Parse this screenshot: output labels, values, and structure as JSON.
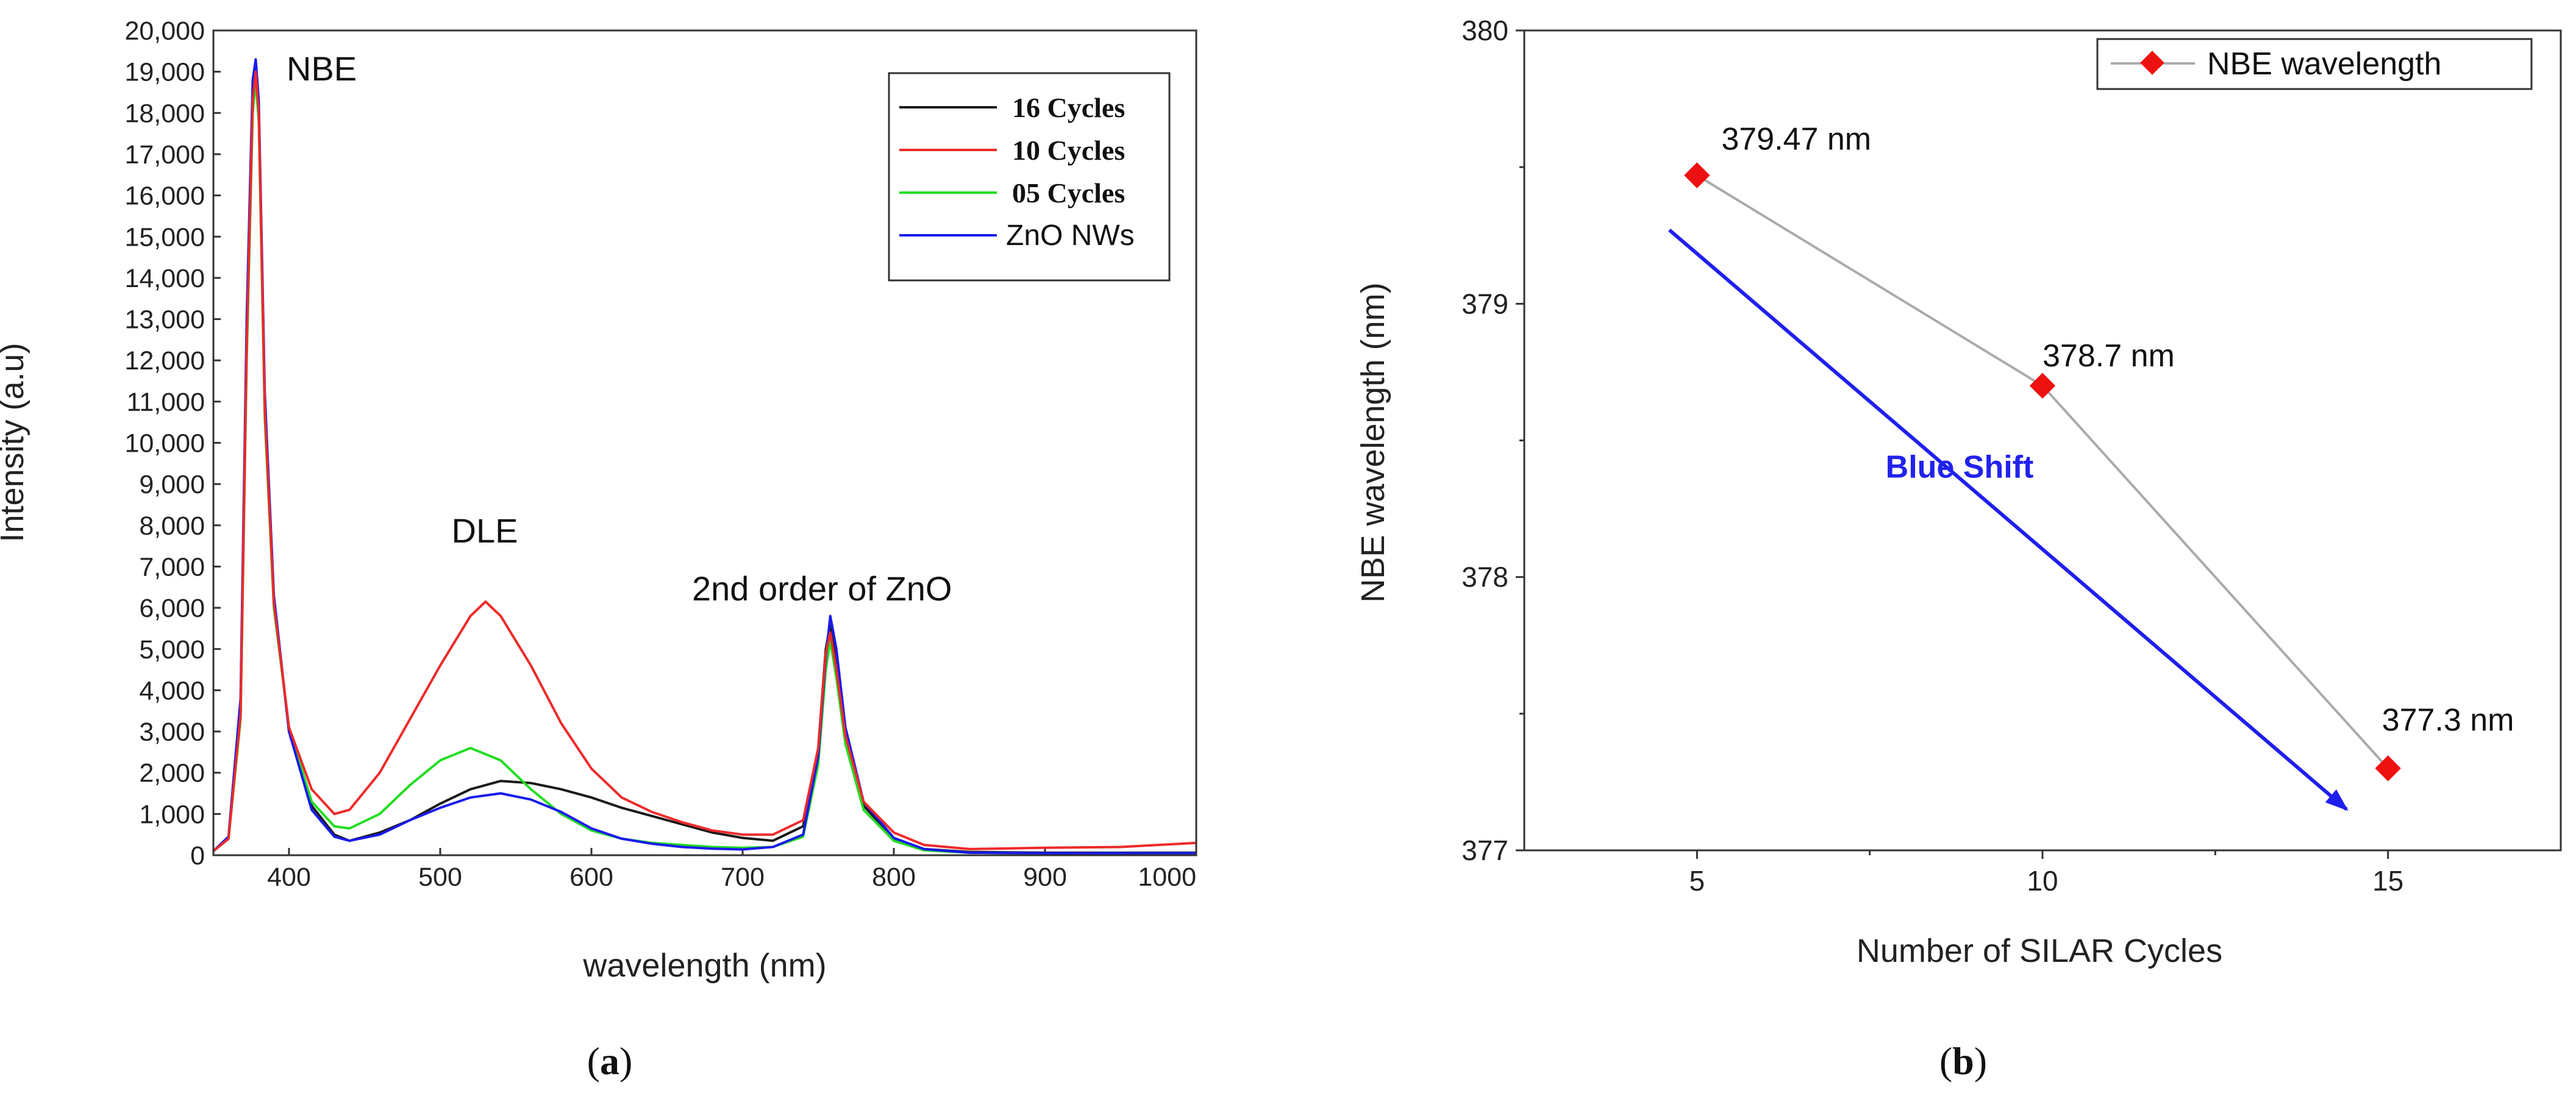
{
  "colors": {
    "black": "#1a1a1a",
    "red": "#ee2a2a",
    "green": "#22dd22",
    "blue": "#1a1aee",
    "grey": "#aaaaaa",
    "marker": "#ee1111",
    "arrow": "#1f1fee",
    "annot_blue": "#2222ee"
  },
  "chart_data": [
    {
      "type": "line",
      "panel_label": "(a)",
      "panel_letter": "a",
      "xlabel": "wavelength (nm)",
      "ylabel": "Intensity (a.u)",
      "xlim": [
        350,
        1000
      ],
      "ylim": [
        0,
        20000
      ],
      "xticks": [
        400,
        500,
        600,
        700,
        800,
        900,
        1000
      ],
      "xtick_labels": [
        "400",
        "500",
        "600",
        "700",
        "800",
        "900",
        "1000"
      ],
      "yticks": [
        0,
        1000,
        2000,
        3000,
        4000,
        5000,
        6000,
        7000,
        8000,
        9000,
        10000,
        11000,
        12000,
        13000,
        14000,
        15000,
        16000,
        17000,
        18000,
        19000,
        20000
      ],
      "ytick_labels": [
        "0",
        "1,000",
        "2,000",
        "3,000",
        "4,000",
        "5,000",
        "6,000",
        "7,000",
        "8,000",
        "9,000",
        "10,000",
        "11,000",
        "12,000",
        "13,000",
        "14,000",
        "15,000",
        "16,000",
        "17,000",
        "18,000",
        "19,000",
        "20,000"
      ],
      "grid": false,
      "legend_position": "top-right",
      "annotations": [
        {
          "text": "NBE",
          "x": 382,
          "y": 19000
        },
        {
          "text": "DLE",
          "x": 530,
          "y": 7600
        },
        {
          "text": "2nd order of ZnO",
          "x": 680,
          "y": 7000
        }
      ],
      "series": [
        {
          "name": "16 Cycles",
          "color_key": "black",
          "x": [
            350,
            360,
            368,
            372,
            376,
            378,
            380,
            384,
            390,
            400,
            415,
            430,
            440,
            460,
            480,
            500,
            520,
            540,
            560,
            580,
            600,
            620,
            640,
            660,
            680,
            700,
            720,
            740,
            750,
            755,
            758,
            762,
            768,
            780,
            800,
            820,
            850,
            900,
            950,
            1000
          ],
          "y": [
            100,
            400,
            3500,
            12500,
            18500,
            19200,
            18200,
            11000,
            6200,
            3000,
            1200,
            500,
            350,
            550,
            850,
            1250,
            1600,
            1800,
            1750,
            1600,
            1400,
            1150,
            950,
            750,
            550,
            420,
            350,
            700,
            2600,
            5000,
            5600,
            4600,
            2800,
            1200,
            400,
            150,
            80,
            60,
            60,
            60
          ]
        },
        {
          "name": "10 Cycles",
          "color_key": "red",
          "x": [
            350,
            360,
            368,
            372,
            376,
            378,
            380,
            384,
            390,
            400,
            415,
            430,
            440,
            460,
            480,
            500,
            520,
            530,
            540,
            560,
            580,
            600,
            620,
            640,
            660,
            680,
            700,
            720,
            740,
            750,
            755,
            758,
            762,
            768,
            780,
            800,
            820,
            850,
            900,
            950,
            1000
          ],
          "y": [
            100,
            400,
            3400,
            12300,
            18300,
            19000,
            18000,
            10800,
            6100,
            3100,
            1600,
            1000,
            1100,
            2000,
            3300,
            4600,
            5800,
            6150,
            5800,
            4600,
            3200,
            2100,
            1400,
            1050,
            800,
            600,
            500,
            500,
            850,
            2600,
            4900,
            5400,
            4500,
            2900,
            1300,
            550,
            250,
            150,
            180,
            200,
            300
          ]
        },
        {
          "name": "05 Cycles",
          "color_key": "green",
          "x": [
            350,
            360,
            368,
            372,
            376,
            378,
            380,
            384,
            390,
            400,
            415,
            430,
            440,
            460,
            480,
            500,
            520,
            540,
            560,
            580,
            600,
            620,
            640,
            660,
            680,
            700,
            720,
            740,
            750,
            755,
            758,
            762,
            768,
            780,
            800,
            820,
            850,
            900,
            950,
            1000
          ],
          "y": [
            100,
            400,
            3300,
            12000,
            18000,
            18800,
            17800,
            10600,
            6000,
            3100,
            1300,
            700,
            650,
            1000,
            1700,
            2300,
            2600,
            2300,
            1600,
            1000,
            600,
            400,
            300,
            250,
            200,
            180,
            200,
            450,
            2200,
            4500,
            5200,
            4300,
            2700,
            1100,
            350,
            120,
            60,
            50,
            50,
            50
          ]
        },
        {
          "name": "ZnO NWs",
          "color_key": "blue",
          "x": [
            350,
            360,
            368,
            372,
            376,
            378,
            380,
            384,
            390,
            400,
            415,
            430,
            440,
            460,
            480,
            500,
            520,
            540,
            560,
            580,
            600,
            620,
            640,
            660,
            680,
            700,
            720,
            740,
            750,
            755,
            758,
            762,
            768,
            780,
            800,
            820,
            850,
            900,
            950,
            1000
          ],
          "y": [
            100,
            450,
            3800,
            13000,
            18800,
            19300,
            18300,
            11200,
            6300,
            3000,
            1100,
            450,
            350,
            500,
            850,
            1150,
            1400,
            1500,
            1350,
            1050,
            650,
            400,
            280,
            200,
            160,
            140,
            200,
            500,
            2400,
            4800,
            5800,
            5000,
            3100,
            1300,
            420,
            150,
            60,
            50,
            50,
            50
          ]
        }
      ]
    },
    {
      "type": "scatter",
      "panel_label": "(b)",
      "panel_letter": "b",
      "xlabel": "Number of SILAR Cycles",
      "ylabel": "NBE wavelength (nm)",
      "xlim": [
        2.5,
        17.5
      ],
      "ylim": [
        377,
        380
      ],
      "xticks": [
        5,
        10,
        15
      ],
      "xtick_labels": [
        "5",
        "10",
        "15"
      ],
      "yticks": [
        377,
        378,
        379,
        380
      ],
      "ytick_labels": [
        "377",
        "378",
        "379",
        "380"
      ],
      "grid": false,
      "legend_position": "top-right",
      "series": [
        {
          "name": "NBE wavelength",
          "x": [
            5,
            10,
            15
          ],
          "y": [
            379.47,
            378.7,
            377.3
          ],
          "labels": [
            "379.47 nm",
            "378.7 nm",
            "377.3 nm"
          ]
        }
      ],
      "arrow": {
        "text": "Blue Shift",
        "from": [
          4.6,
          379.27
        ],
        "to": [
          14.4,
          377.15
        ],
        "label_at": [
          8.8,
          378.4
        ]
      }
    }
  ]
}
